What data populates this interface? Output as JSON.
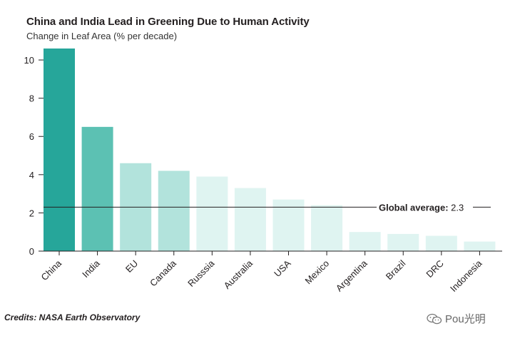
{
  "chart_data": {
    "type": "bar",
    "title": "China and India Lead in Greening Due to Human Activity",
    "subtitle": "Change in Leaf Area (% per decade)",
    "xlabel": "",
    "ylabel": "Change in Leaf Area (% per decade)",
    "ylim": [
      0,
      10.6
    ],
    "yticks": [
      0,
      2,
      4,
      6,
      8,
      10
    ],
    "categories": [
      "China",
      "India",
      "EU",
      "Canada",
      "Russsia",
      "Australia",
      "USA",
      "Mexico",
      "Argentina",
      "Brazil",
      "DRC",
      "Indonesia"
    ],
    "values": [
      10.6,
      6.5,
      4.6,
      4.2,
      3.9,
      3.3,
      2.7,
      2.4,
      1.0,
      0.9,
      0.8,
      0.5
    ],
    "bar_colors": [
      "#26a69a",
      "#5cc1b3",
      "#b2e3dc",
      "#b2e3dc",
      "#dff4f1",
      "#dff4f1",
      "#dff4f1",
      "#dff4f1",
      "#dff4f1",
      "#dff4f1",
      "#dff4f1",
      "#dff4f1"
    ],
    "reference_line": {
      "label": "Global average:",
      "value_text": "2.3",
      "value": 2.3,
      "color": "#231f20"
    },
    "grid": false
  },
  "footer": {
    "credits": "Credits: NASA Earth Observatory",
    "watermark": "Pou光明",
    "watermark_icon": "wechat-icon"
  }
}
